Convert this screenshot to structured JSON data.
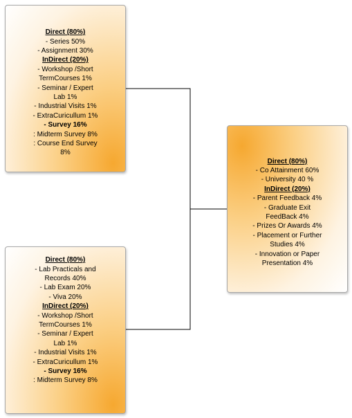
{
  "boxes": {
    "top_left": {
      "lines": [
        {
          "text": "Direct (80%)",
          "style": "hdr"
        },
        {
          "text": "- Series 50%",
          "style": ""
        },
        {
          "text": "- Assignment 30%",
          "style": ""
        },
        {
          "text": "InDirect (20%)",
          "style": "hdr"
        },
        {
          "text": "- Workshop /Short",
          "style": ""
        },
        {
          "text": "TermCourses 1%",
          "style": ""
        },
        {
          "text": "- Seminar / Expert",
          "style": ""
        },
        {
          "text": "Lab 1%",
          "style": ""
        },
        {
          "text": "- Industrial Visits 1%",
          "style": ""
        },
        {
          "text": "- ExtraCuricullum 1%",
          "style": ""
        },
        {
          "text": "- Survey 16%",
          "style": "bold"
        },
        {
          "text": ": Midterm Survey 8%",
          "style": ""
        },
        {
          "text": ": Course End Survey",
          "style": ""
        },
        {
          "text": "8%",
          "style": ""
        }
      ]
    },
    "bottom_left": {
      "lines": [
        {
          "text": "Direct (80%)",
          "style": "hdr"
        },
        {
          "text": "- Lab Practicals and",
          "style": ""
        },
        {
          "text": "Records 40%",
          "style": ""
        },
        {
          "text": "- Lab Exam 20%",
          "style": ""
        },
        {
          "text": "- Viva 20%",
          "style": ""
        },
        {
          "text": "InDirect (20%)",
          "style": "hdr"
        },
        {
          "text": "- Workshop /Short",
          "style": ""
        },
        {
          "text": "TermCourses 1%",
          "style": ""
        },
        {
          "text": "- Seminar / Expert",
          "style": ""
        },
        {
          "text": "Lab 1%",
          "style": ""
        },
        {
          "text": "- Industrial Visits 1%",
          "style": ""
        },
        {
          "text": "- ExtraCuricullum 1%",
          "style": ""
        },
        {
          "text": "- Survey 16%",
          "style": "bold"
        },
        {
          "text": ": Midterm Survey 8%",
          "style": ""
        }
      ]
    },
    "right": {
      "lines": [
        {
          "text": "Direct (80%)",
          "style": "hdr"
        },
        {
          "text": "- Co Attainment 60%",
          "style": ""
        },
        {
          "text": "- University 40 %",
          "style": ""
        },
        {
          "text": "InDirect (20%)",
          "style": "hdr"
        },
        {
          "text": "- Parent Feedback 4%",
          "style": ""
        },
        {
          "text": "- Graduate Exit",
          "style": ""
        },
        {
          "text": "FeedBack 4%",
          "style": ""
        },
        {
          "text": "- Prizes Or Awards 4%",
          "style": ""
        },
        {
          "text": "- Placement or Further",
          "style": ""
        },
        {
          "text": "Studies 4%",
          "style": ""
        },
        {
          "text": "- Innovation or Paper",
          "style": ""
        },
        {
          "text": "Presentation 4%",
          "style": ""
        }
      ]
    }
  }
}
